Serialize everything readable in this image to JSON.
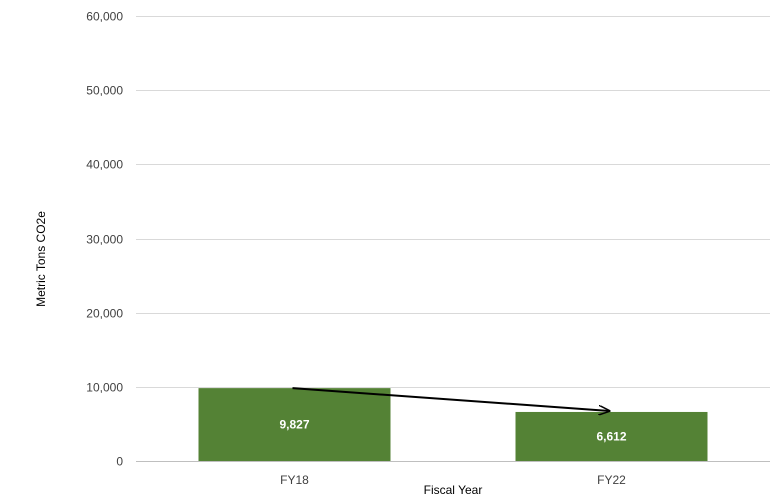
{
  "chart_data": {
    "type": "bar",
    "title": "",
    "xlabel": "Fiscal Year",
    "ylabel": "Metric Tons CO2e",
    "categories": [
      "FY18",
      "FY22"
    ],
    "values": [
      9827,
      6612
    ],
    "data_labels": [
      "9,827",
      "6,612"
    ],
    "ylim": [
      0,
      60000
    ],
    "yticks": [
      0,
      10000,
      20000,
      30000,
      40000,
      50000,
      60000
    ],
    "ytick_labels": [
      "0",
      "10,000",
      "20,000",
      "30,000",
      "40,000",
      "50,000",
      "60,000"
    ],
    "grid": true,
    "legend": "none",
    "annotations": [
      {
        "type": "trend-arrow",
        "from": "FY18",
        "to": "FY22"
      }
    ],
    "colors": {
      "bar": "#548235",
      "grid": "#d9d9d9",
      "arrow": "#000000",
      "data_label": "#ffffff"
    }
  }
}
